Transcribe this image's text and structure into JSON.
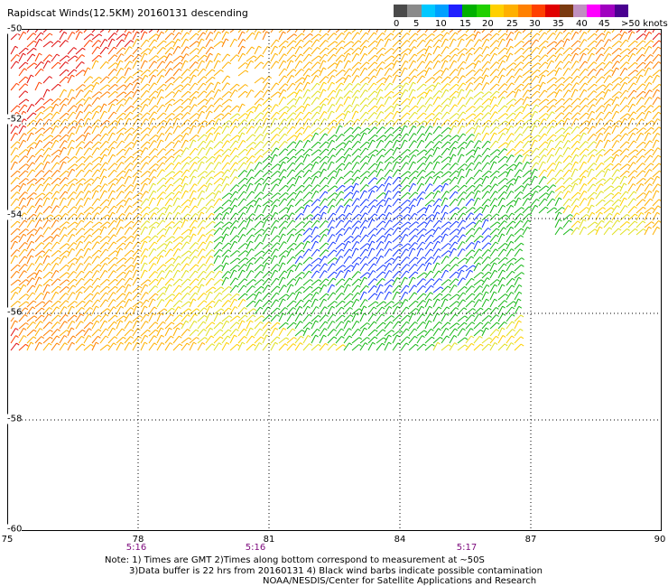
{
  "title": "Rapidscat Winds(12.5KM) 20160131 descending",
  "legend": {
    "labels": [
      "0",
      "5",
      "10",
      "15",
      "20",
      "25",
      "30",
      "35",
      "40",
      "45",
      ">50 knots"
    ],
    "colors": [
      "#4a4a4a",
      "#8a8a8a",
      "#00c8ff",
      "#00a0ff",
      "#2020ff",
      "#00b000",
      "#20d000",
      "#ffd000",
      "#ffb000",
      "#ff8000",
      "#ff4000",
      "#e00000",
      "#7a3a10",
      "#c090c0",
      "#ff00ff",
      "#a000c0",
      "#4a0090"
    ]
  },
  "axes": {
    "x_ticks": [
      "75",
      "78",
      "81",
      "84",
      "87",
      "90"
    ],
    "y_ticks": [
      "-50",
      "-52",
      "-54",
      "-56",
      "-58",
      "-60"
    ]
  },
  "times": [
    "5:16",
    "5:16",
    "5:17"
  ],
  "notes": {
    "line1": "Note: 1) Times are GMT 2)Times along bottom correspond to measurement at ~50S",
    "line2": "3)Data buffer is 22 hrs from 20160131 4) Black wind barbs indicate possible contamination",
    "line3": "NOAA/NESDIS/Center for Satellite Applications and Research"
  }
}
